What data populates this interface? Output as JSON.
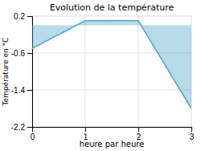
{
  "chart_data": {
    "type": "area",
    "title": "Evolution de la température",
    "xlabel": "heure par heure",
    "ylabel": "Température en °C",
    "x": [
      0,
      1,
      2,
      3
    ],
    "series": [
      {
        "values": [
          -0.5,
          0.1,
          0.1,
          -1.8
        ],
        "color": "#4da6c8"
      }
    ],
    "baseline": 0.0,
    "xlim": [
      0,
      3
    ],
    "ylim": [
      -2.2,
      0.2
    ],
    "xticks": [
      0,
      1,
      2,
      3
    ],
    "yticks": [
      0.2,
      -0.6,
      -1.4,
      -2.2
    ],
    "grid": true
  }
}
